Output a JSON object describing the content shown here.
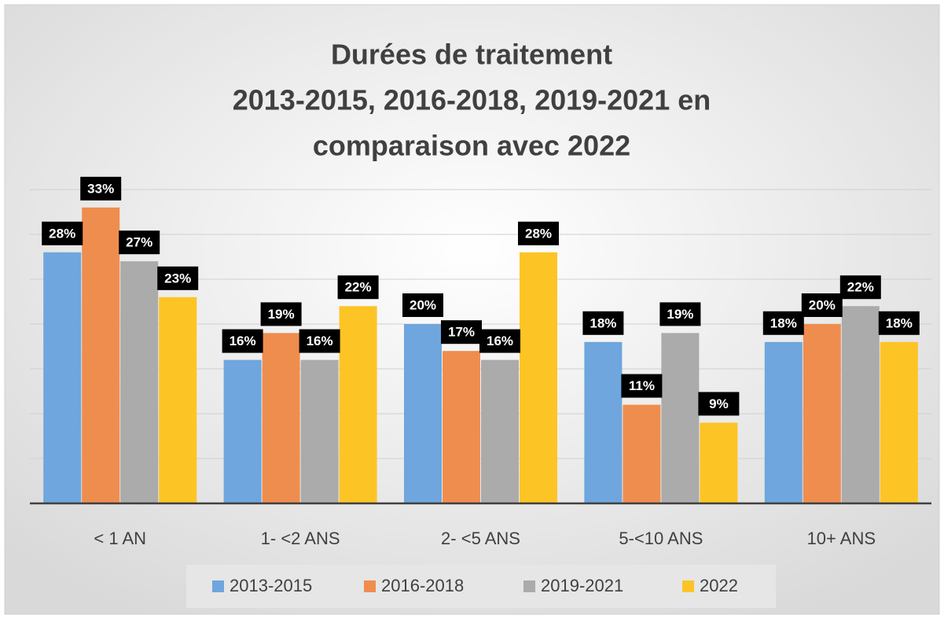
{
  "chart_data": {
    "type": "bar",
    "title": [
      "Durées de traitement",
      "2013-2015, 2016-2018, 2019-2021 en",
      "comparaison avec 2022"
    ],
    "categories": [
      "< 1 AN",
      "1- <2 ANS",
      "2- <5 ANS",
      "5-<10  ANS",
      "10+ ANS"
    ],
    "series": [
      {
        "name": "2013-2015",
        "color": "#6ea6dd",
        "values": [
          28,
          16,
          20,
          18,
          18
        ],
        "value_labels": [
          "28%",
          "16%",
          "20%",
          "18%",
          "18%"
        ]
      },
      {
        "name": "2016-2018",
        "color": "#ef8d4f",
        "values": [
          33,
          19,
          17,
          11,
          20
        ],
        "value_labels": [
          "33%",
          "19%",
          "17%",
          "11%",
          "20%"
        ]
      },
      {
        "name": "2019-2021",
        "color": "#ababab",
        "values": [
          27,
          16,
          16,
          19,
          22
        ],
        "value_labels": [
          "27%",
          "16%",
          "16%",
          "19%",
          "22%"
        ]
      },
      {
        "name": "2022",
        "color": "#fdc426",
        "values": [
          23,
          22,
          28,
          9,
          18
        ],
        "value_labels": [
          "23%",
          "22%",
          "28%",
          "9%",
          "18%"
        ]
      }
    ],
    "ylim": [
      0,
      35
    ],
    "yticks": [
      0,
      5,
      10,
      15,
      20,
      25,
      30,
      35
    ],
    "grid": true,
    "legend": "bottom"
  }
}
